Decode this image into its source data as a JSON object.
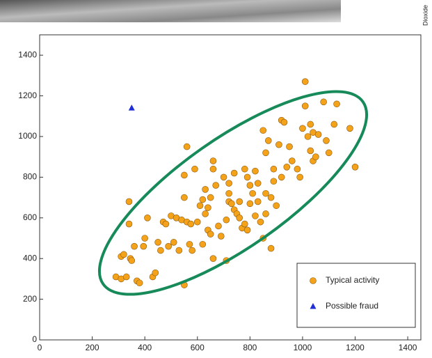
{
  "chart_data": {
    "type": "scatter",
    "side_text": "Dioxide",
    "xlim": [
      0,
      1450
    ],
    "ylim": [
      0,
      1500
    ],
    "xticks": [
      0,
      200,
      400,
      600,
      800,
      1000,
      1200,
      1400
    ],
    "yticks": [
      0,
      200,
      400,
      600,
      800,
      1000,
      1200,
      1400
    ],
    "series": [
      {
        "name": "Typical activity",
        "color": "#f5a21b",
        "marker": "circle",
        "x": [
          290,
          310,
          310,
          320,
          330,
          340,
          340,
          345,
          350,
          360,
          370,
          380,
          395,
          400,
          410,
          430,
          440,
          450,
          460,
          470,
          480,
          490,
          500,
          510,
          520,
          530,
          540,
          550,
          550,
          560,
          560,
          570,
          575,
          580,
          590,
          600,
          610,
          620,
          620,
          630,
          630,
          640,
          640,
          650,
          650,
          660,
          660,
          660,
          670,
          680,
          690,
          700,
          710,
          710,
          720,
          720,
          730,
          740,
          740,
          750,
          760,
          760,
          770,
          780,
          780,
          790,
          790,
          800,
          800,
          810,
          820,
          820,
          830,
          830,
          840,
          850,
          850,
          860,
          860,
          870,
          880,
          880,
          890,
          890,
          900,
          910,
          920,
          920,
          930,
          940,
          950,
          960,
          980,
          990,
          1000,
          1010,
          1010,
          1020,
          1030,
          1030,
          1040,
          1040,
          1050,
          1060,
          1080,
          1090,
          1100,
          1120,
          1130,
          1180,
          1200,
          550,
          720,
          860
        ],
        "y": [
          310,
          300,
          410,
          420,
          310,
          680,
          570,
          400,
          390,
          460,
          290,
          280,
          460,
          500,
          600,
          310,
          330,
          480,
          440,
          580,
          570,
          460,
          610,
          480,
          600,
          440,
          590,
          700,
          810,
          580,
          950,
          470,
          570,
          440,
          840,
          580,
          660,
          690,
          470,
          740,
          620,
          650,
          540,
          700,
          520,
          840,
          880,
          400,
          760,
          560,
          510,
          800,
          590,
          390,
          680,
          770,
          670,
          640,
          820,
          620,
          600,
          680,
          550,
          570,
          840,
          800,
          540,
          670,
          760,
          720,
          830,
          610,
          680,
          770,
          580,
          1030,
          500,
          620,
          920,
          980,
          700,
          450,
          780,
          840,
          660,
          960,
          1080,
          800,
          1070,
          850,
          950,
          880,
          840,
          800,
          1040,
          1150,
          1270,
          1000,
          930,
          1060,
          1020,
          880,
          900,
          1010,
          1170,
          980,
          920,
          1060,
          1160,
          1040,
          850,
          270,
          720,
          720
        ]
      },
      {
        "name": "Possible fraud",
        "color": "#1f2fd6",
        "marker": "triangle",
        "x": [
          350
        ],
        "y": [
          1140
        ]
      }
    ]
  }
}
